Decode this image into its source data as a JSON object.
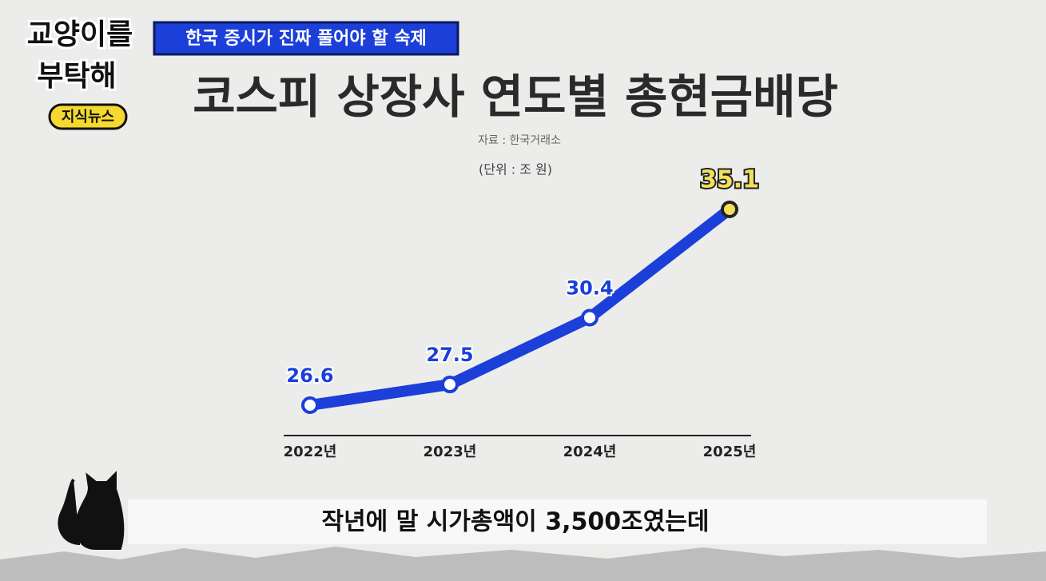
{
  "logo": {
    "line1": "교양이를",
    "line2": "부탁해",
    "badge": "지식뉴스"
  },
  "banner": "한국 증시가 진짜 풀어야 할 숙제",
  "subtitle": "작년에 말 시가총액이 3,500조였는데",
  "chart_data": {
    "type": "line",
    "title": "코스피 상장사 연도별 총현금배당",
    "source": "자료 : 한국거래소",
    "unit": "(단위 : 조 원)",
    "categories": [
      "2022년",
      "2023년",
      "2024년",
      "2025년"
    ],
    "values": [
      26.6,
      27.5,
      30.4,
      35.1
    ],
    "color": "#1b3fd8",
    "highlight_color": "#f3e05a"
  }
}
